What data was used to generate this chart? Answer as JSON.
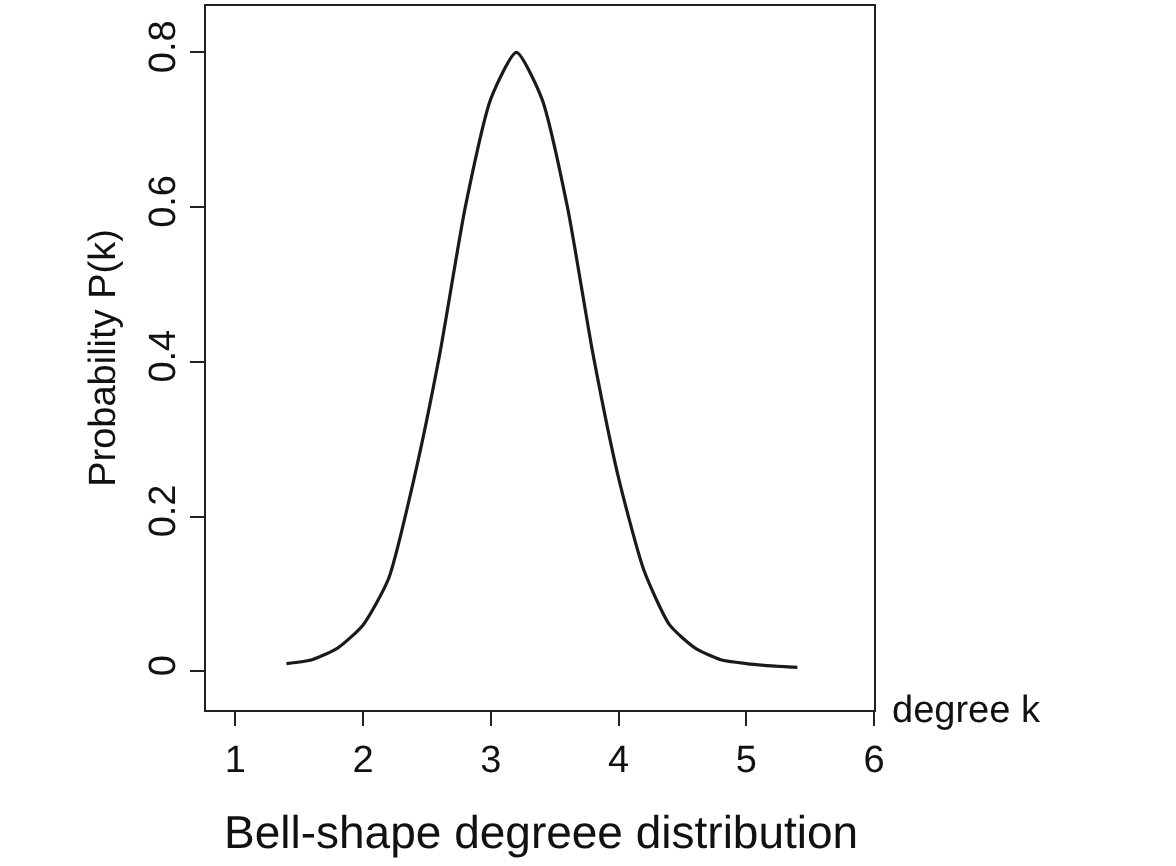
{
  "chart_data": {
    "type": "line",
    "title": "Bell-shape degreee distribution",
    "xlabel": "degree k",
    "ylabel": "Probability P(k)",
    "x": [
      1.4,
      1.6,
      1.8,
      2.0,
      2.2,
      2.4,
      2.6,
      2.8,
      3.0,
      3.2,
      3.4,
      3.6,
      3.8,
      4.0,
      4.2,
      4.4,
      4.6,
      4.8,
      5.0,
      5.2,
      5.4
    ],
    "series": [
      {
        "color": "#1a1a1a",
        "values": [
          0.01,
          0.015,
          0.03,
          0.06,
          0.12,
          0.25,
          0.41,
          0.6,
          0.74,
          0.8,
          0.74,
          0.6,
          0.41,
          0.25,
          0.13,
          0.06,
          0.03,
          0.015,
          0.01,
          0.007,
          0.005
        ]
      }
    ],
    "xlim": [
      0.77,
      6.0
    ],
    "xticks": [
      1,
      2,
      3,
      4,
      5,
      6
    ],
    "ylim": [
      -0.05,
      0.86
    ],
    "yticks": [
      0,
      0.2,
      0.4,
      0.6,
      0.8
    ],
    "grid": false,
    "marker": "none",
    "line_style": "solid"
  }
}
